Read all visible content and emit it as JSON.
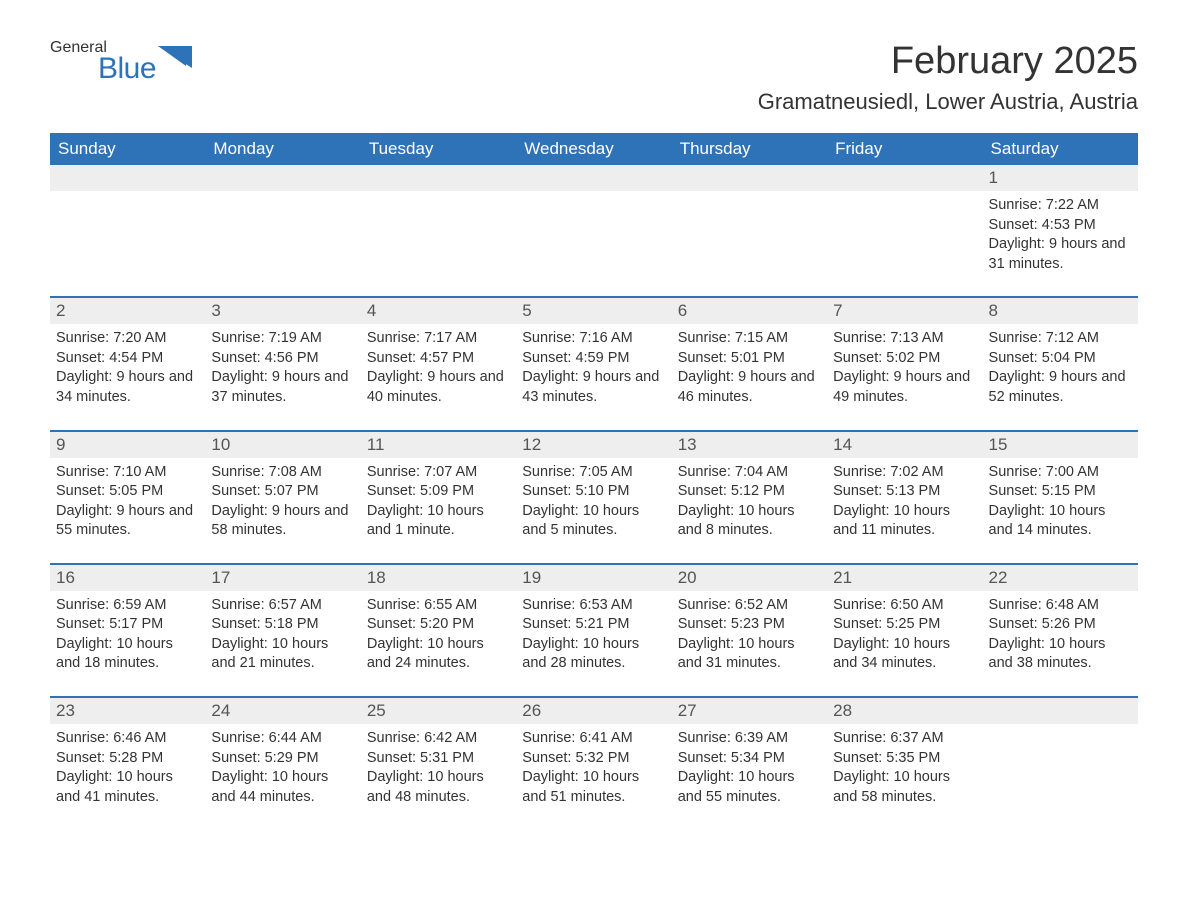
{
  "logo": {
    "line1": "General",
    "line2": "Blue",
    "tri_color": "#2e72b8"
  },
  "title": "February 2025",
  "location": "Gramatneusiedl, Lower Austria, Austria",
  "colors": {
    "header_bg": "#2e72b8",
    "row_divider": "#2e72b8",
    "daynum_bg": "#eeeeee",
    "text": "#333333",
    "bg": "#ffffff"
  },
  "daysOfWeek": [
    "Sunday",
    "Monday",
    "Tuesday",
    "Wednesday",
    "Thursday",
    "Friday",
    "Saturday"
  ],
  "weeks": [
    [
      {
        "n": "",
        "sr": "",
        "ss": "",
        "dl": ""
      },
      {
        "n": "",
        "sr": "",
        "ss": "",
        "dl": ""
      },
      {
        "n": "",
        "sr": "",
        "ss": "",
        "dl": ""
      },
      {
        "n": "",
        "sr": "",
        "ss": "",
        "dl": ""
      },
      {
        "n": "",
        "sr": "",
        "ss": "",
        "dl": ""
      },
      {
        "n": "",
        "sr": "",
        "ss": "",
        "dl": ""
      },
      {
        "n": "1",
        "sr": "Sunrise: 7:22 AM",
        "ss": "Sunset: 4:53 PM",
        "dl": "Daylight: 9 hours and 31 minutes."
      }
    ],
    [
      {
        "n": "2",
        "sr": "Sunrise: 7:20 AM",
        "ss": "Sunset: 4:54 PM",
        "dl": "Daylight: 9 hours and 34 minutes."
      },
      {
        "n": "3",
        "sr": "Sunrise: 7:19 AM",
        "ss": "Sunset: 4:56 PM",
        "dl": "Daylight: 9 hours and 37 minutes."
      },
      {
        "n": "4",
        "sr": "Sunrise: 7:17 AM",
        "ss": "Sunset: 4:57 PM",
        "dl": "Daylight: 9 hours and 40 minutes."
      },
      {
        "n": "5",
        "sr": "Sunrise: 7:16 AM",
        "ss": "Sunset: 4:59 PM",
        "dl": "Daylight: 9 hours and 43 minutes."
      },
      {
        "n": "6",
        "sr": "Sunrise: 7:15 AM",
        "ss": "Sunset: 5:01 PM",
        "dl": "Daylight: 9 hours and 46 minutes."
      },
      {
        "n": "7",
        "sr": "Sunrise: 7:13 AM",
        "ss": "Sunset: 5:02 PM",
        "dl": "Daylight: 9 hours and 49 minutes."
      },
      {
        "n": "8",
        "sr": "Sunrise: 7:12 AM",
        "ss": "Sunset: 5:04 PM",
        "dl": "Daylight: 9 hours and 52 minutes."
      }
    ],
    [
      {
        "n": "9",
        "sr": "Sunrise: 7:10 AM",
        "ss": "Sunset: 5:05 PM",
        "dl": "Daylight: 9 hours and 55 minutes."
      },
      {
        "n": "10",
        "sr": "Sunrise: 7:08 AM",
        "ss": "Sunset: 5:07 PM",
        "dl": "Daylight: 9 hours and 58 minutes."
      },
      {
        "n": "11",
        "sr": "Sunrise: 7:07 AM",
        "ss": "Sunset: 5:09 PM",
        "dl": "Daylight: 10 hours and 1 minute."
      },
      {
        "n": "12",
        "sr": "Sunrise: 7:05 AM",
        "ss": "Sunset: 5:10 PM",
        "dl": "Daylight: 10 hours and 5 minutes."
      },
      {
        "n": "13",
        "sr": "Sunrise: 7:04 AM",
        "ss": "Sunset: 5:12 PM",
        "dl": "Daylight: 10 hours and 8 minutes."
      },
      {
        "n": "14",
        "sr": "Sunrise: 7:02 AM",
        "ss": "Sunset: 5:13 PM",
        "dl": "Daylight: 10 hours and 11 minutes."
      },
      {
        "n": "15",
        "sr": "Sunrise: 7:00 AM",
        "ss": "Sunset: 5:15 PM",
        "dl": "Daylight: 10 hours and 14 minutes."
      }
    ],
    [
      {
        "n": "16",
        "sr": "Sunrise: 6:59 AM",
        "ss": "Sunset: 5:17 PM",
        "dl": "Daylight: 10 hours and 18 minutes."
      },
      {
        "n": "17",
        "sr": "Sunrise: 6:57 AM",
        "ss": "Sunset: 5:18 PM",
        "dl": "Daylight: 10 hours and 21 minutes."
      },
      {
        "n": "18",
        "sr": "Sunrise: 6:55 AM",
        "ss": "Sunset: 5:20 PM",
        "dl": "Daylight: 10 hours and 24 minutes."
      },
      {
        "n": "19",
        "sr": "Sunrise: 6:53 AM",
        "ss": "Sunset: 5:21 PM",
        "dl": "Daylight: 10 hours and 28 minutes."
      },
      {
        "n": "20",
        "sr": "Sunrise: 6:52 AM",
        "ss": "Sunset: 5:23 PM",
        "dl": "Daylight: 10 hours and 31 minutes."
      },
      {
        "n": "21",
        "sr": "Sunrise: 6:50 AM",
        "ss": "Sunset: 5:25 PM",
        "dl": "Daylight: 10 hours and 34 minutes."
      },
      {
        "n": "22",
        "sr": "Sunrise: 6:48 AM",
        "ss": "Sunset: 5:26 PM",
        "dl": "Daylight: 10 hours and 38 minutes."
      }
    ],
    [
      {
        "n": "23",
        "sr": "Sunrise: 6:46 AM",
        "ss": "Sunset: 5:28 PM",
        "dl": "Daylight: 10 hours and 41 minutes."
      },
      {
        "n": "24",
        "sr": "Sunrise: 6:44 AM",
        "ss": "Sunset: 5:29 PM",
        "dl": "Daylight: 10 hours and 44 minutes."
      },
      {
        "n": "25",
        "sr": "Sunrise: 6:42 AM",
        "ss": "Sunset: 5:31 PM",
        "dl": "Daylight: 10 hours and 48 minutes."
      },
      {
        "n": "26",
        "sr": "Sunrise: 6:41 AM",
        "ss": "Sunset: 5:32 PM",
        "dl": "Daylight: 10 hours and 51 minutes."
      },
      {
        "n": "27",
        "sr": "Sunrise: 6:39 AM",
        "ss": "Sunset: 5:34 PM",
        "dl": "Daylight: 10 hours and 55 minutes."
      },
      {
        "n": "28",
        "sr": "Sunrise: 6:37 AM",
        "ss": "Sunset: 5:35 PM",
        "dl": "Daylight: 10 hours and 58 minutes."
      },
      {
        "n": "",
        "sr": "",
        "ss": "",
        "dl": ""
      }
    ]
  ]
}
